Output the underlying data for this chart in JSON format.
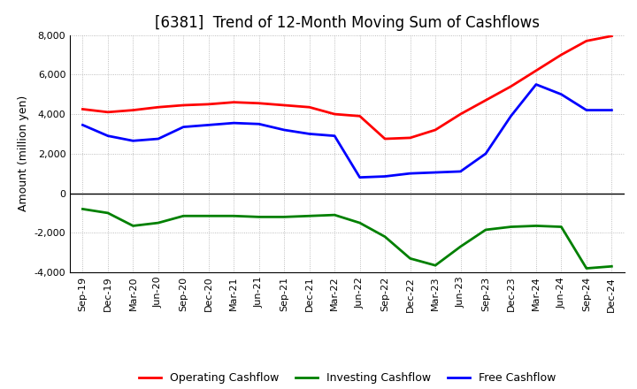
{
  "title": "[6381]  Trend of 12-Month Moving Sum of Cashflows",
  "ylabel": "Amount (million yen)",
  "ylim": [
    -4000,
    8000
  ],
  "yticks": [
    -4000,
    -2000,
    0,
    2000,
    4000,
    6000,
    8000
  ],
  "x_labels": [
    "Sep-19",
    "Dec-19",
    "Mar-20",
    "Jun-20",
    "Sep-20",
    "Dec-20",
    "Mar-21",
    "Jun-21",
    "Sep-21",
    "Dec-21",
    "Mar-22",
    "Jun-22",
    "Sep-22",
    "Dec-22",
    "Mar-23",
    "Jun-23",
    "Sep-23",
    "Dec-23",
    "Mar-24",
    "Jun-24",
    "Sep-24",
    "Dec-24"
  ],
  "operating_cashflow": [
    4250,
    4100,
    4200,
    4350,
    4450,
    4500,
    4600,
    4550,
    4450,
    4350,
    4000,
    3900,
    2750,
    2800,
    3200,
    4000,
    4700,
    5400,
    6200,
    7000,
    7700,
    7950
  ],
  "investing_cashflow": [
    -800,
    -1000,
    -1650,
    -1500,
    -1150,
    -1150,
    -1150,
    -1200,
    -1200,
    -1150,
    -1100,
    -1500,
    -2200,
    -3300,
    -3650,
    -2700,
    -1850,
    -1700,
    -1650,
    -1700,
    -3800,
    -3700
  ],
  "free_cashflow": [
    3450,
    2900,
    2650,
    2750,
    3350,
    3450,
    3550,
    3500,
    3200,
    3000,
    2900,
    800,
    850,
    1000,
    1050,
    1100,
    2000,
    3900,
    5500,
    5000,
    4200,
    4200
  ],
  "op_color": "#FF0000",
  "inv_color": "#008000",
  "free_color": "#0000FF",
  "line_width": 2.0,
  "bg_color": "#FFFFFF",
  "grid_color": "#AAAAAA",
  "title_fontsize": 12,
  "axis_fontsize": 9,
  "tick_fontsize": 8,
  "legend_fontsize": 9
}
